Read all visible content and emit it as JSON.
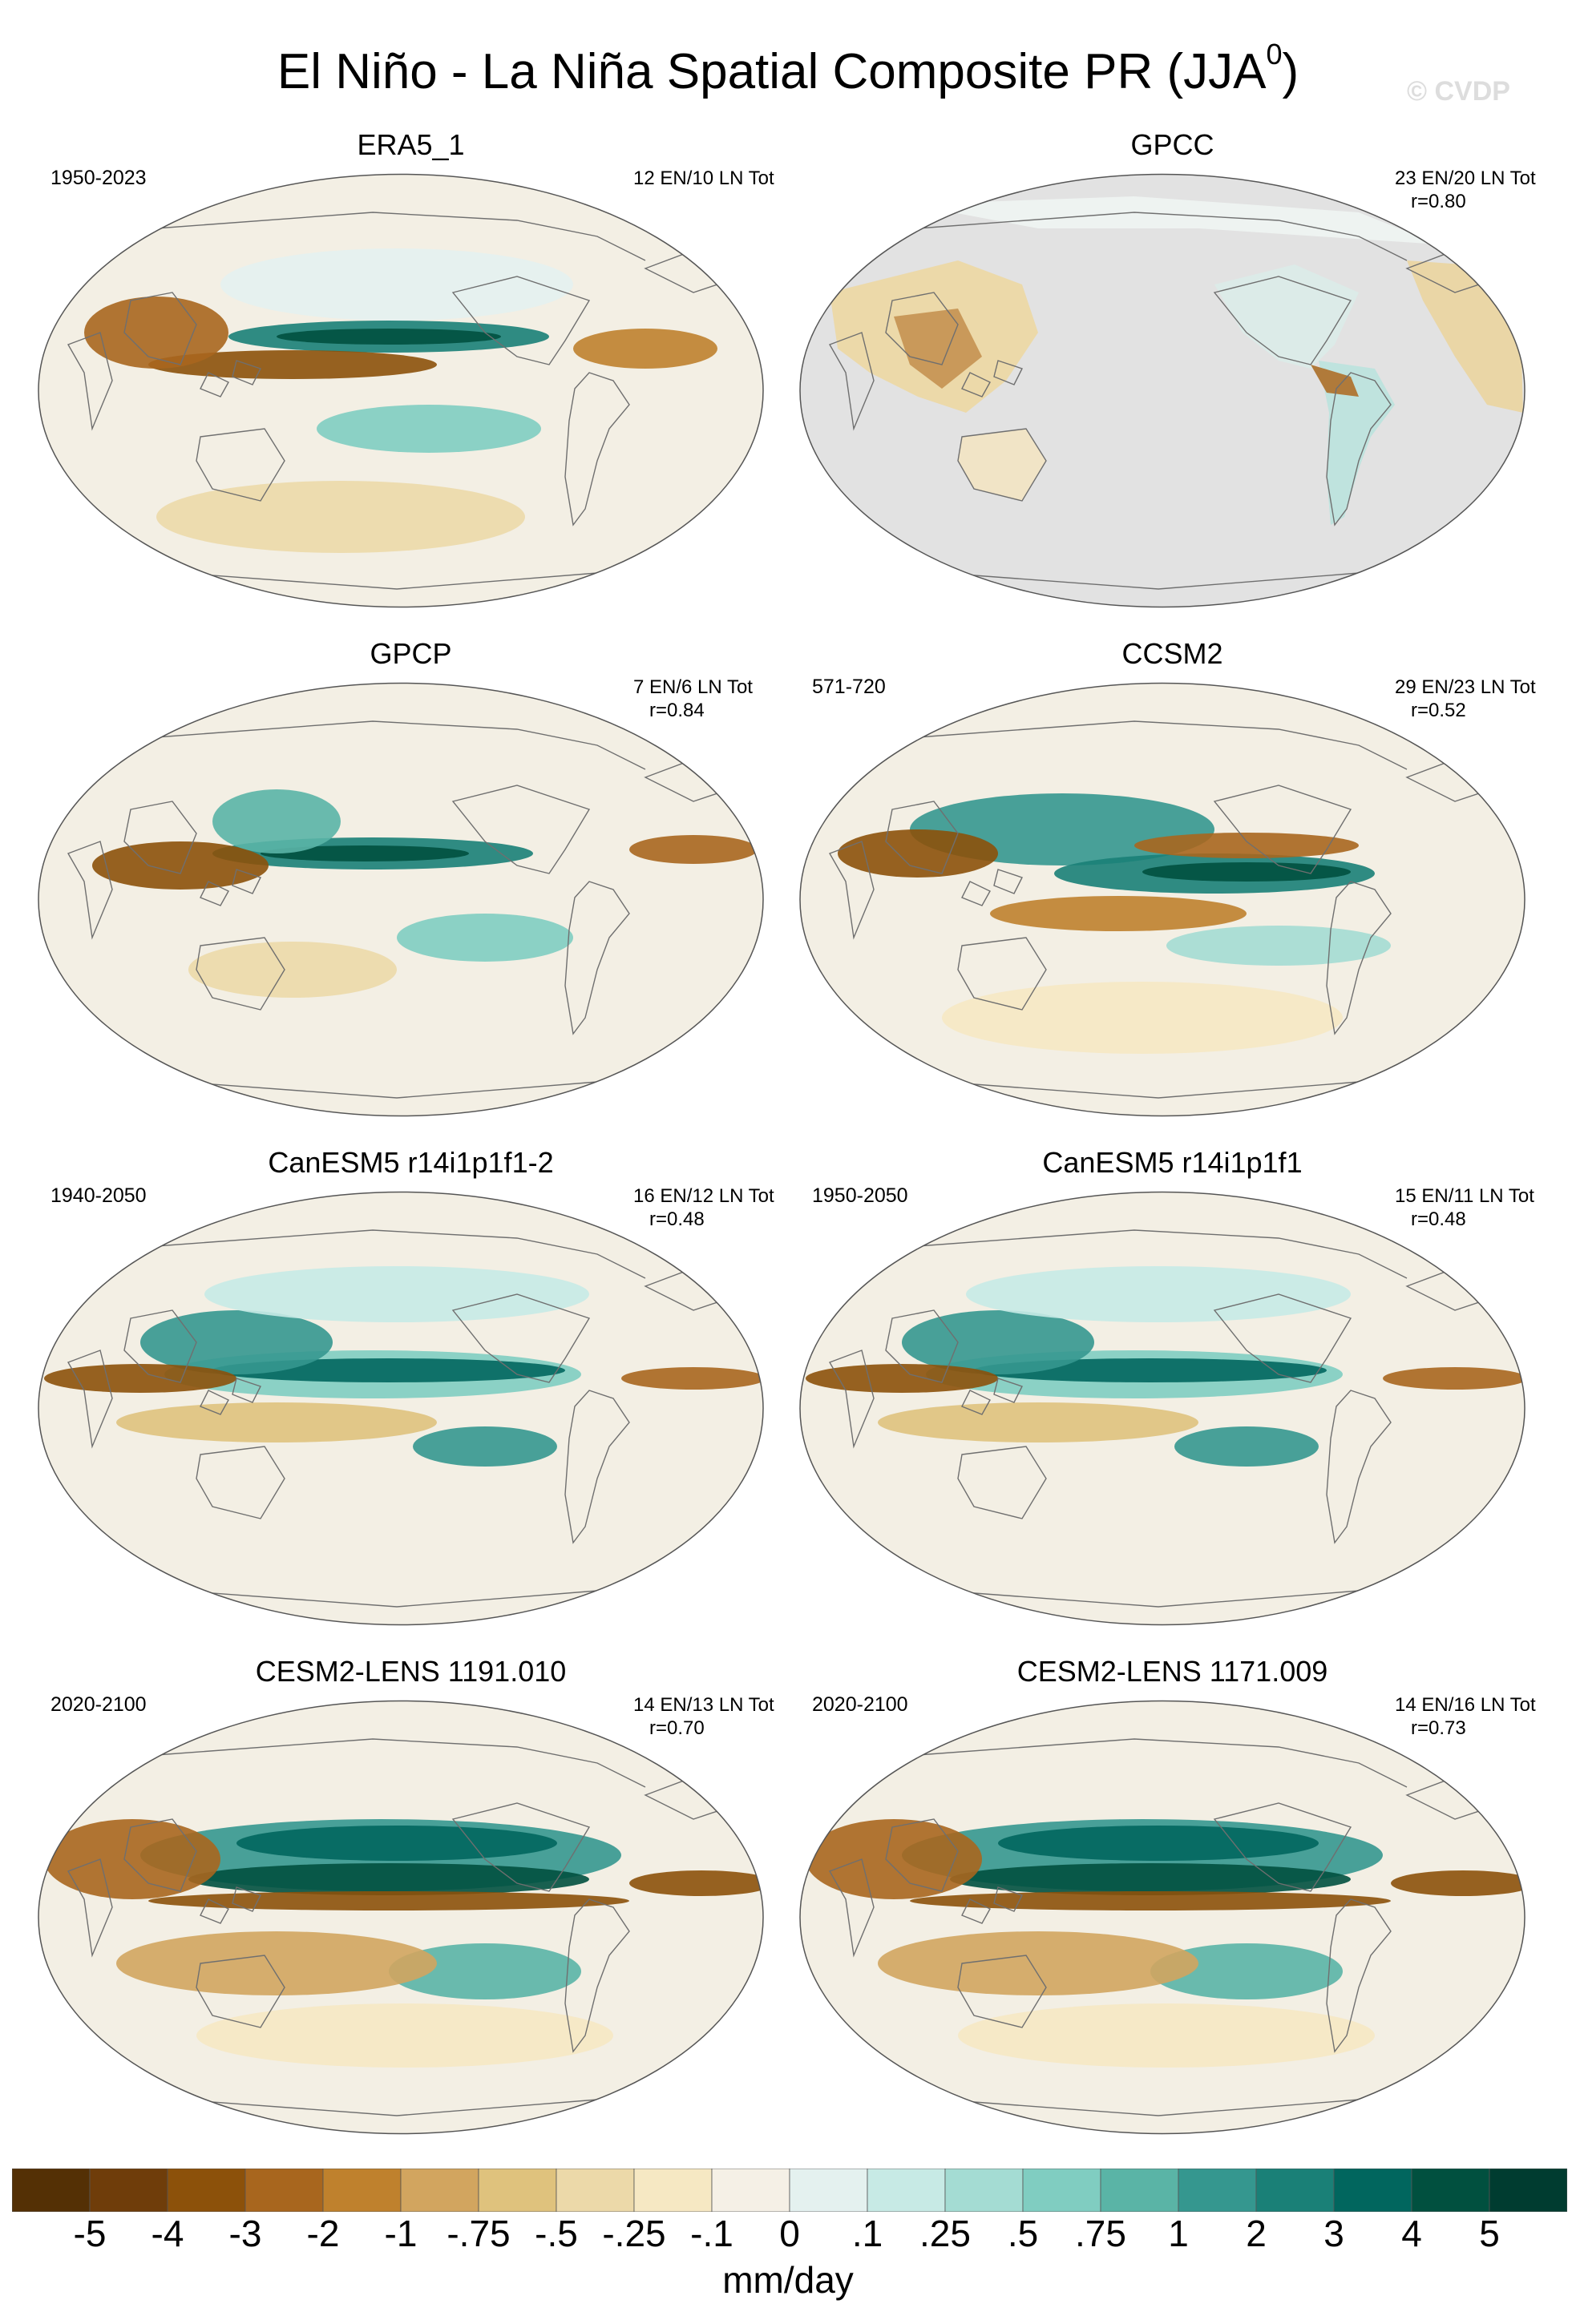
{
  "title_main": "El Niño - La Niña Spatial Composite PR (JJA",
  "title_sup": "0",
  "title_close": ")",
  "watermark": "© CVDP",
  "panels": [
    {
      "title": "ERA5_1",
      "period": "1950-2023",
      "counts": "12 EN/10 LN Tot",
      "r": "",
      "style": "obs"
    },
    {
      "title": "GPCC",
      "period": "",
      "counts": "23 EN/20 LN Tot",
      "r": "r=0.80",
      "style": "land"
    },
    {
      "title": "GPCP",
      "period": "",
      "counts": "7 EN/6 LN Tot",
      "r": "r=0.84",
      "style": "gpcp"
    },
    {
      "title": "CCSM2",
      "period": "571-720",
      "counts": "29 EN/23 LN Tot",
      "r": "r=0.52",
      "style": "ccsm"
    },
    {
      "title": "CanESM5 r14i1p1f1-2",
      "period": "1940-2050",
      "counts": "16 EN/12 LN Tot",
      "r": "r=0.48",
      "style": "can"
    },
    {
      "title": "CanESM5 r14i1p1f1",
      "period": "1950-2050",
      "counts": "15 EN/11 LN Tot",
      "r": "r=0.48",
      "style": "can"
    },
    {
      "title": "CESM2-LENS 1191.010",
      "period": "2020-2100",
      "counts": "14 EN/13 LN Tot",
      "r": "r=0.70",
      "style": "cesm"
    },
    {
      "title": "CESM2-LENS 1171.009",
      "period": "2020-2100",
      "counts": "14 EN/16 LN Tot",
      "r": "r=0.73",
      "style": "cesm"
    }
  ],
  "colorbar": {
    "labels": [
      "-5",
      "-4",
      "-3",
      "-2",
      "-1",
      "-.75",
      "-.5",
      "-.25",
      "-.1",
      "0",
      ".1",
      ".25",
      ".5",
      ".75",
      "1",
      "2",
      "3",
      "4",
      "5"
    ],
    "colors": [
      "#543005",
      "#6f3d0a",
      "#8c510a",
      "#a8661e",
      "#bf812d",
      "#d2a55f",
      "#dfc27d",
      "#ecd9a9",
      "#f6e8c3",
      "#f5f0e6",
      "#e4f1ef",
      "#c7eae5",
      "#a4dcd3",
      "#80cdc1",
      "#5ab4a6",
      "#35978f",
      "#1a8077",
      "#01665e",
      "#01503f",
      "#003c30"
    ],
    "units": "mm/day"
  }
}
